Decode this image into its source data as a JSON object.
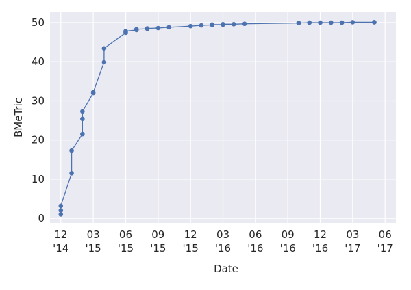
{
  "chart_data": {
    "type": "line",
    "x_label": "Date",
    "y_label": "BMeTric",
    "x": [
      "2014-12",
      "2014-12",
      "2014-12",
      "2015-01",
      "2015-01",
      "2015-02",
      "2015-02",
      "2015-02",
      "2015-03",
      "2015-03",
      "2015-04",
      "2015-04",
      "2015-06",
      "2015-06",
      "2015-06",
      "2015-07",
      "2015-07",
      "2015-08",
      "2015-08",
      "2015-09",
      "2015-10",
      "2015-12",
      "2016-01",
      "2016-02",
      "2016-02",
      "2016-02",
      "2016-03",
      "2016-03",
      "2016-03",
      "2016-04",
      "2016-05",
      "2016-10",
      "2016-10",
      "2016-10",
      "2016-11",
      "2016-12",
      "2017-01",
      "2017-02",
      "2017-02",
      "2017-03",
      "2017-05",
      "2017-05"
    ],
    "series": [
      {
        "color": "#4c72b0",
        "values": [
          1.0,
          2.0,
          3.2,
          11.5,
          17.3,
          21.5,
          25.4,
          27.3,
          32.0,
          32.2,
          39.9,
          43.4,
          47.4,
          47.6,
          47.8,
          48.1,
          48.3,
          48.4,
          48.5,
          48.6,
          48.8,
          49.1,
          49.3,
          49.4,
          49.5,
          49.5,
          49.5,
          49.5,
          49.6,
          49.6,
          49.7,
          49.9,
          49.9,
          49.9,
          50.0,
          50.0,
          50.0,
          50.0,
          50.0,
          50.1,
          50.1,
          50.1
        ]
      }
    ],
    "xlim": [
      "2014-11",
      "2017-07"
    ],
    "xticks": [
      {
        "value": "2014-12",
        "label": "12\n'14"
      },
      {
        "value": "2015-03",
        "label": "03\n'15"
      },
      {
        "value": "2015-06",
        "label": "06\n'15"
      },
      {
        "value": "2015-09",
        "label": "09\n'15"
      },
      {
        "value": "2015-12",
        "label": "12\n'15"
      },
      {
        "value": "2016-03",
        "label": "03\n'16"
      },
      {
        "value": "2016-06",
        "label": "06\n'16"
      },
      {
        "value": "2016-09",
        "label": "09\n'16"
      },
      {
        "value": "2016-12",
        "label": "12\n'16"
      },
      {
        "value": "2017-03",
        "label": "03\n'17"
      },
      {
        "value": "2017-06",
        "label": "06\n'17"
      }
    ],
    "ylim": [
      -1.2,
      52.8
    ],
    "yticks": [
      0,
      10,
      20,
      30,
      40,
      50
    ],
    "grid": true
  }
}
